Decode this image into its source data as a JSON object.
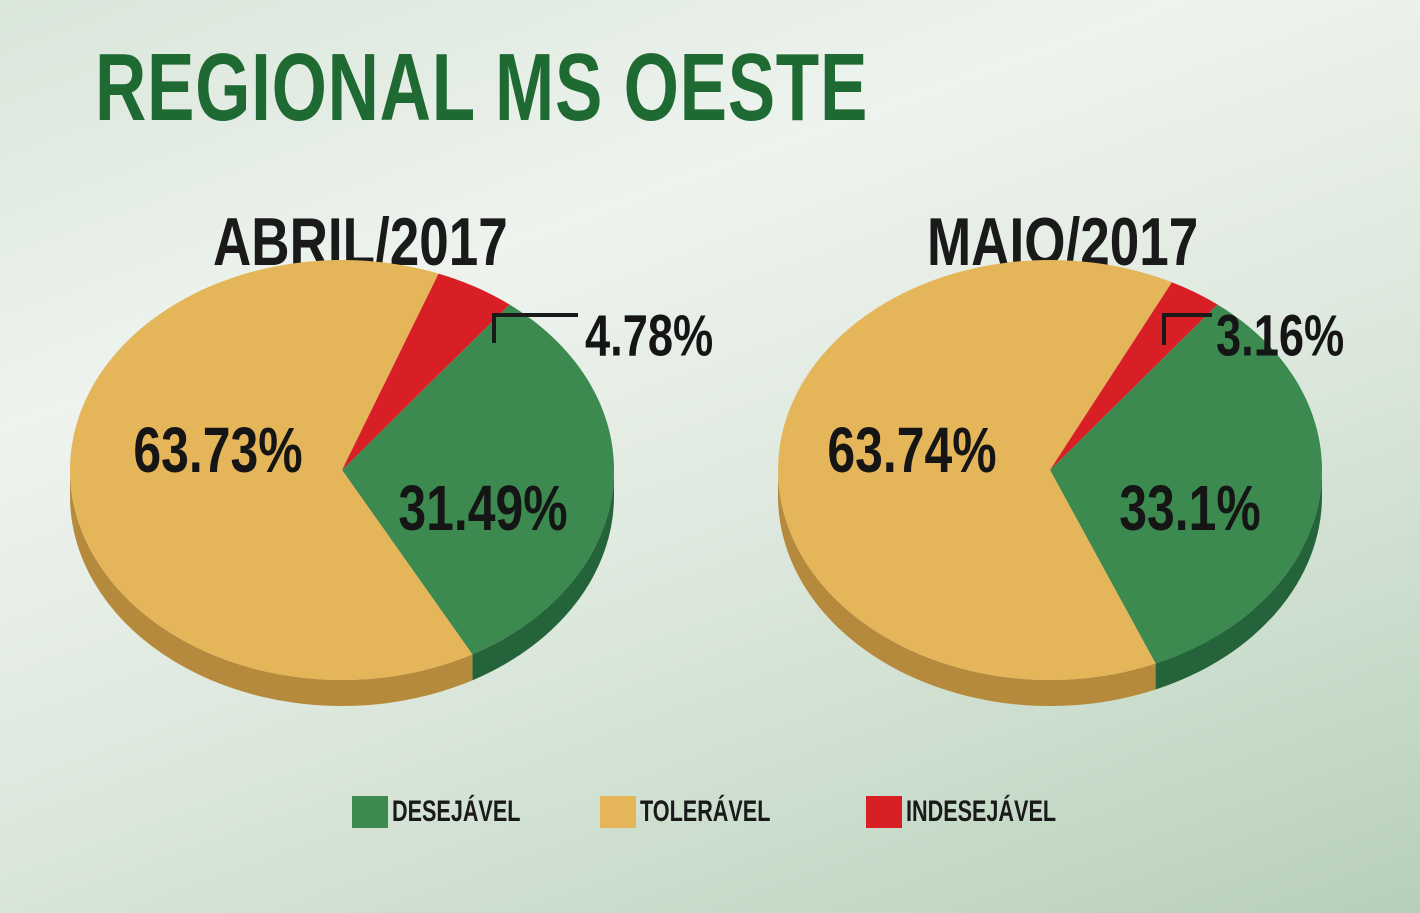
{
  "title": "REGIONAL MS OESTE",
  "colors": {
    "desejavel": "#3c8a50",
    "desejavel_side": "#25643a",
    "toleravel": "#e5b55a",
    "toleravel_side": "#b68a3c",
    "indesejavel": "#d91f26",
    "indesejavel_side": "#8c1418"
  },
  "legend": [
    {
      "label": "DESEJÁVEL",
      "color": "#3c8a50"
    },
    {
      "label": "TOLERÁVEL",
      "color": "#e5b55a"
    },
    {
      "label": "INDESEJÁVEL",
      "color": "#d91f26"
    }
  ],
  "chart_data": [
    {
      "type": "pie",
      "title": "ABRIL/2017",
      "slices": [
        {
          "name": "DESEJÁVEL",
          "value": 31.49,
          "label": "31.49%"
        },
        {
          "name": "TOLERÁVEL",
          "value": 63.73,
          "label": "63.73%"
        },
        {
          "name": "INDESEJÁVEL",
          "value": 4.78,
          "label": "4.78%"
        }
      ]
    },
    {
      "type": "pie",
      "title": "MAIO/2017",
      "slices": [
        {
          "name": "DESEJÁVEL",
          "value": 33.1,
          "label": "33.1%"
        },
        {
          "name": "TOLERÁVEL",
          "value": 63.74,
          "label": "63.74%"
        },
        {
          "name": "INDESEJÁVEL",
          "value": 3.16,
          "label": "3.16%"
        }
      ]
    }
  ]
}
